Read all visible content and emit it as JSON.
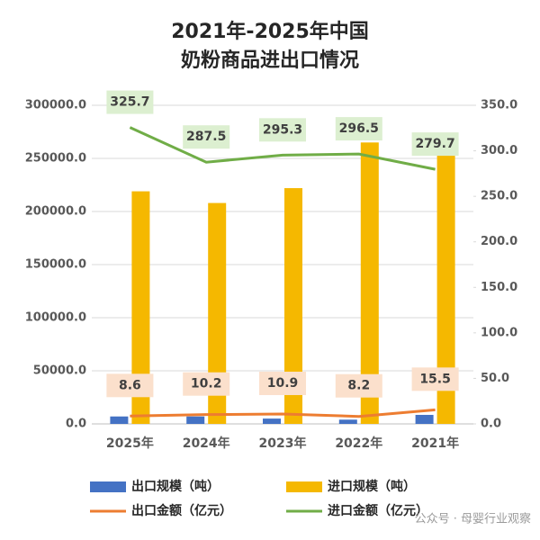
{
  "chart_data": {
    "type": "bar",
    "title": [
      "2021年-2025年中国",
      "奶粉商品进出口情况"
    ],
    "categories": [
      "2025年",
      "2024年",
      "2023年",
      "2022年",
      "2021年"
    ],
    "ylim": [
      0,
      300000
    ],
    "yticks": [
      {
        "value": 0,
        "label": "0.0"
      },
      {
        "value": 50000,
        "label": "50000.0"
      },
      {
        "value": 100000,
        "label": "100000.0"
      },
      {
        "value": 150000,
        "label": "150000.0"
      },
      {
        "value": 200000,
        "label": "200000.0"
      },
      {
        "value": 250000,
        "label": "250000.0"
      },
      {
        "value": 300000,
        "label": "300000.0"
      }
    ],
    "y2lim": [
      0,
      350
    ],
    "y2ticks": [
      {
        "value": 0,
        "label": "0.0"
      },
      {
        "value": 50,
        "label": "50.0"
      },
      {
        "value": 100,
        "label": "100.0"
      },
      {
        "value": 150,
        "label": "150.0"
      },
      {
        "value": 200,
        "label": "200.0"
      },
      {
        "value": 250,
        "label": "250.0"
      },
      {
        "value": 300,
        "label": "300.0"
      },
      {
        "value": 350,
        "label": "350.0"
      }
    ],
    "grid": true,
    "series": [
      {
        "name": "出口规模（吨）",
        "type": "bar",
        "color": "#4472c4",
        "values": [
          7000,
          7000,
          5000,
          4000,
          8500
        ]
      },
      {
        "name": "进口规模（吨）",
        "type": "bar",
        "color": "#f5b800",
        "values": [
          219000,
          208000,
          222000,
          265000,
          259000
        ]
      },
      {
        "name": "出口金额（亿元）",
        "type": "line",
        "axis": "y2",
        "color": "#ed7d31",
        "values": [
          8.6,
          10.2,
          10.9,
          8.2,
          15.5
        ]
      },
      {
        "name": "进口金额（亿元）",
        "type": "line",
        "axis": "y2",
        "color": "#70ad47",
        "values": [
          325.7,
          287.5,
          295.3,
          296.5,
          279.7
        ]
      }
    ],
    "watermark": "公众号 · 母婴行业观察"
  }
}
